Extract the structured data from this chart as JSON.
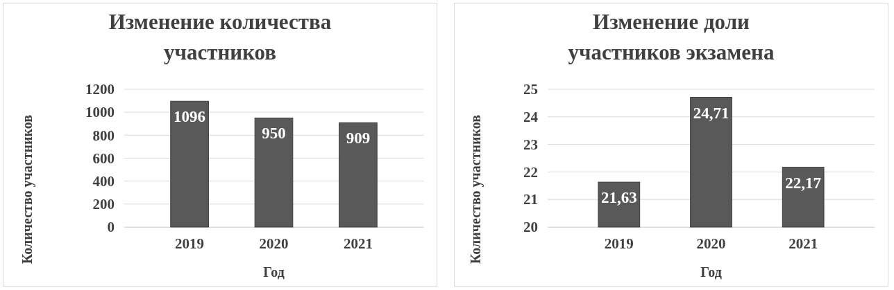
{
  "chart_data": [
    {
      "type": "bar",
      "title": "Изменение количества участников",
      "xlabel": "Год",
      "ylabel": "Количество участников",
      "categories": [
        "2019",
        "2020",
        "2021"
      ],
      "values": [
        1096,
        950,
        909
      ],
      "color": "#595959",
      "ylim": [
        0,
        1200
      ],
      "yticks": [
        0,
        200,
        400,
        600,
        800,
        1000,
        1200
      ],
      "grid": "y",
      "data_labels": true
    },
    {
      "type": "bar",
      "title": "Изменение доли участников экзамена",
      "xlabel": "Год",
      "ylabel": "Количество участников",
      "categories": [
        "2019",
        "2020",
        "2021"
      ],
      "values": [
        21.63,
        24.71,
        22.17
      ],
      "value_labels": [
        "21,63",
        "24,71",
        "22,17"
      ],
      "color": "#595959",
      "ylim": [
        20,
        25
      ],
      "yticks": [
        20,
        21,
        22,
        23,
        24,
        25
      ],
      "grid": "y"
    }
  ]
}
